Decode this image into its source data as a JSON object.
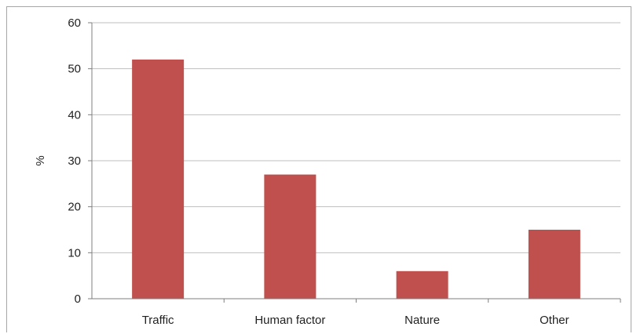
{
  "chart_data": {
    "type": "bar",
    "title": "",
    "xlabel": "",
    "ylabel": "%",
    "categories": [
      "Traffic",
      "Human factor",
      "Nature",
      "Other"
    ],
    "values": [
      52,
      27,
      6,
      15
    ],
    "ylim": [
      0,
      60
    ],
    "yticks": [
      "0",
      "10",
      "20",
      "30",
      "40",
      "50",
      "60"
    ],
    "grid": true,
    "legend": "none",
    "colors": {
      "bar": "#c0504d",
      "grid": "#bfbfbf",
      "axis": "#7f7f7f"
    }
  }
}
